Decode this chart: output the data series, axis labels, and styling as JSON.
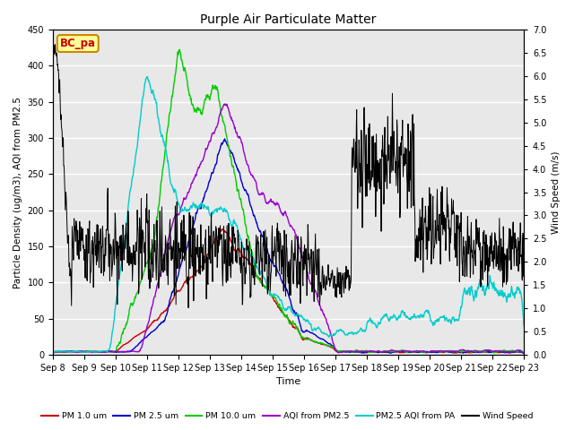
{
  "title": "Purple Air Particulate Matter",
  "xlabel": "Time",
  "ylabel_left": "Particle Density (ug/m3), AQI from PM2.5",
  "ylabel_right": "Wind Speed (m/s)",
  "ylim_left": [
    0,
    450
  ],
  "ylim_right": [
    0,
    7.0
  ],
  "yticks_left": [
    0,
    50,
    100,
    150,
    200,
    250,
    300,
    350,
    400,
    450
  ],
  "yticks_right": [
    0.0,
    0.5,
    1.0,
    1.5,
    2.0,
    2.5,
    3.0,
    3.5,
    4.0,
    4.5,
    5.0,
    5.5,
    6.0,
    6.5,
    7.0
  ],
  "station_label": "BC_pa",
  "colors": {
    "pm1": "#cc0000",
    "pm25": "#0000cc",
    "pm10": "#00cc00",
    "aqi_pm25": "#9900cc",
    "aqi_pa": "#00cccc",
    "wind": "#000000"
  },
  "legend_labels": [
    "PM 1.0 um",
    "PM 2.5 um",
    "PM 10.0 um",
    "AQI from PM2.5",
    "PM2.5 AQI from PA",
    "Wind Speed"
  ],
  "plot_bg": "#e8e8e8"
}
